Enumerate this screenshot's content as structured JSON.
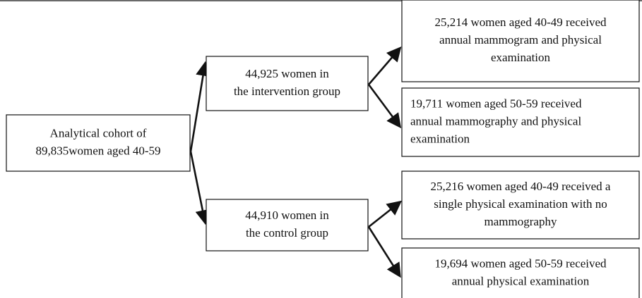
{
  "nodes": [
    {
      "lines": [
        "Analytical cohort of",
        "89,835women aged 40-59"
      ]
    },
    {
      "lines": [
        "44,925 women in",
        "the intervention group"
      ]
    },
    {
      "lines": [
        "44,910 women in",
        "the control group"
      ]
    },
    {
      "lines": [
        "25,214 women aged 40-49 received",
        "annual mammogram and physical",
        "examination"
      ]
    },
    {
      "lines": [
        "19,711 women aged 50-59 received",
        "annual mammography and physical",
        "examination"
      ]
    },
    {
      "lines": [
        "25,216 women aged 40-49 received a",
        "single physical examination with no",
        "mammography"
      ]
    },
    {
      "lines": [
        "19,694 women aged 50-59 received",
        "annual physical examination"
      ]
    }
  ]
}
